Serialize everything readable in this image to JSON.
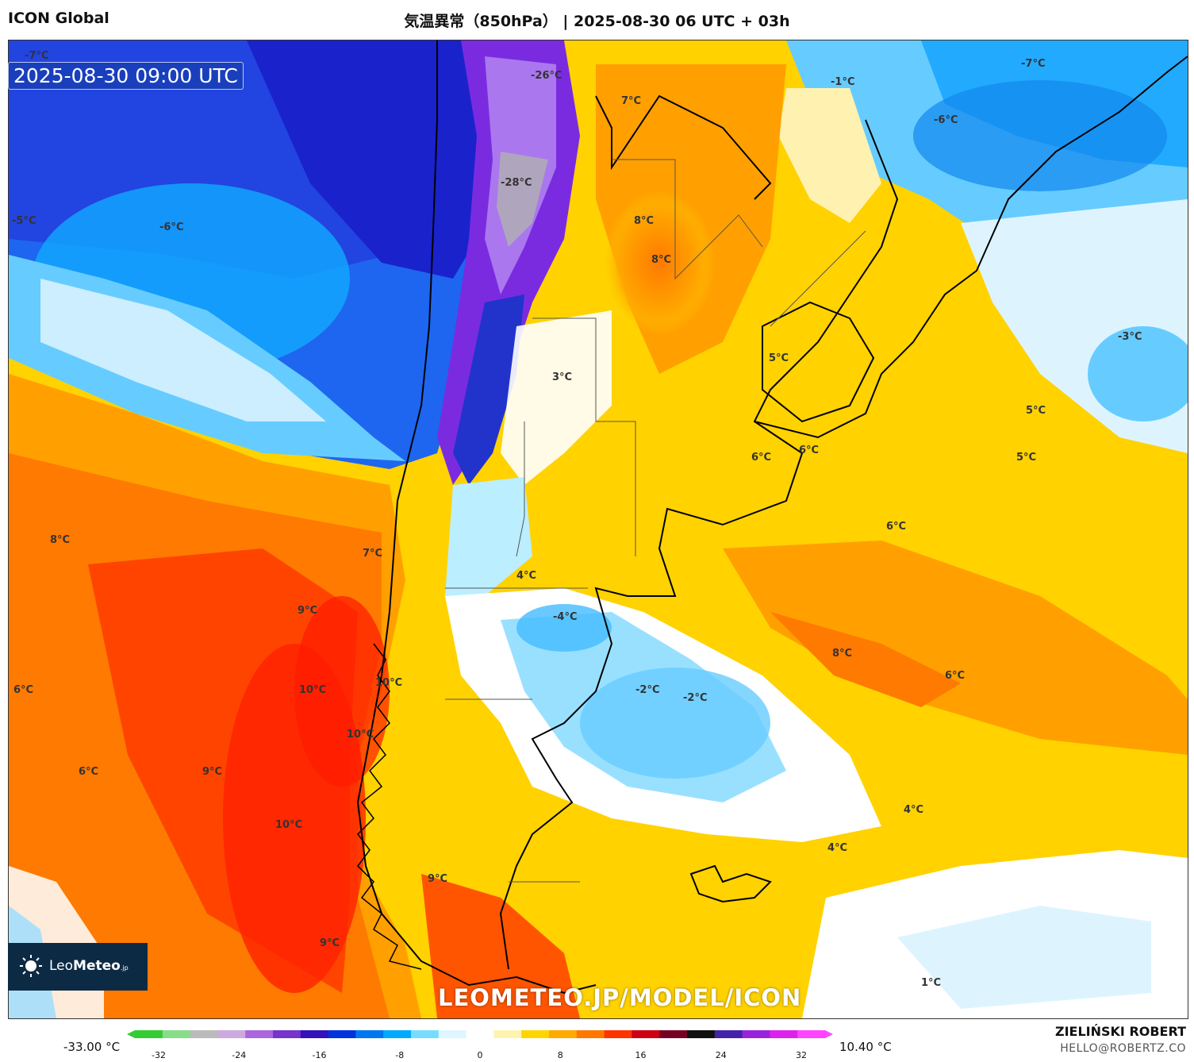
{
  "header": {
    "model": "ICON Global",
    "title": "気温異常（850hPa） | 2025-08-30 06 UTC + 03h"
  },
  "map": {
    "timestamp": "2025-08-30 09:00 UTC",
    "watermark": "LEOMETEO.JP/MODEL/ICON",
    "labels": [
      {
        "text": "-7°C",
        "name": "label-nw-corner"
      },
      {
        "text": "-26°C",
        "name": "label-andes-north"
      },
      {
        "text": "7°C",
        "name": "label-north-argentina"
      },
      {
        "text": "-1°C",
        "name": "label-paraguay"
      },
      {
        "text": "-7°C",
        "name": "label-brazil-ne"
      },
      {
        "text": "-6°C",
        "name": "label-brazil-east"
      },
      {
        "text": "-28°C",
        "name": "label-andes-center"
      },
      {
        "text": "-5°C",
        "name": "label-west-edge"
      },
      {
        "text": "-6°C",
        "name": "label-pacific-north"
      },
      {
        "text": "8°C",
        "name": "label-chaco"
      },
      {
        "text": "8°C",
        "name": "label-santiago-del-estero"
      },
      {
        "text": "-3°C",
        "name": "label-atlantic-east"
      },
      {
        "text": "5°C",
        "name": "label-uruguay"
      },
      {
        "text": "3°C",
        "name": "label-cordoba"
      },
      {
        "text": "5°C",
        "name": "label-atlantic-1"
      },
      {
        "text": "5°C",
        "name": "label-atlantic-2"
      },
      {
        "text": "6°C",
        "name": "label-buenos-aires-1"
      },
      {
        "text": "6°C",
        "name": "label-buenos-aires-2"
      },
      {
        "text": "6°C",
        "name": "label-atlantic-3"
      },
      {
        "text": "8°C",
        "name": "label-pacific-west"
      },
      {
        "text": "7°C",
        "name": "label-chile-coast"
      },
      {
        "text": "4°C",
        "name": "label-neuquen"
      },
      {
        "text": "9°C",
        "name": "label-pacific-1"
      },
      {
        "text": "-4°C",
        "name": "label-rio-negro"
      },
      {
        "text": "6°C",
        "name": "label-west-edge-2"
      },
      {
        "text": "10°C",
        "name": "label-pacific-2"
      },
      {
        "text": "10°C",
        "name": "label-chiloe"
      },
      {
        "text": "-2°C",
        "name": "label-atlantic-cold-1"
      },
      {
        "text": "-2°C",
        "name": "label-atlantic-cold-2"
      },
      {
        "text": "8°C",
        "name": "label-atlantic-warm"
      },
      {
        "text": "6°C",
        "name": "label-atlantic-4"
      },
      {
        "text": "10°C",
        "name": "label-aysen"
      },
      {
        "text": "6°C",
        "name": "label-pacific-3"
      },
      {
        "text": "9°C",
        "name": "label-pacific-4"
      },
      {
        "text": "10°C",
        "name": "label-pacific-5"
      },
      {
        "text": "4°C",
        "name": "label-atlantic-5"
      },
      {
        "text": "4°C",
        "name": "label-atlantic-6"
      },
      {
        "text": "9°C",
        "name": "label-magallanes"
      },
      {
        "text": "9°C",
        "name": "label-pacific-6"
      },
      {
        "text": "1°C",
        "name": "label-south-atlantic"
      }
    ]
  },
  "logo": {
    "brand_light": "Leo",
    "brand_bold": "Meteo",
    "brand_suffix": ".jp"
  },
  "colorbar": {
    "min_label": "-33.00 °C",
    "max_label": "10.40 °C",
    "ticks": [
      "-32",
      "-24",
      "-16",
      "-8",
      "0",
      "8",
      "16",
      "24",
      "32"
    ],
    "colors": [
      "#33cc33",
      "#88dd88",
      "#bbbbbb",
      "#ccaadd",
      "#aa66dd",
      "#7733cc",
      "#3311bb",
      "#0033dd",
      "#0077ee",
      "#00aaff",
      "#77ddff",
      "#ddf6ff",
      "#ffffff",
      "#fff3b0",
      "#ffd500",
      "#ffaa00",
      "#ff7700",
      "#ff3300",
      "#cc0011",
      "#770022",
      "#111111",
      "#4422aa",
      "#9922dd",
      "#dd22ee",
      "#ff44ff"
    ]
  },
  "footer": {
    "author": "ZIELIŃSKI ROBERT",
    "email": "HELLO@ROBERTZ.CO"
  }
}
